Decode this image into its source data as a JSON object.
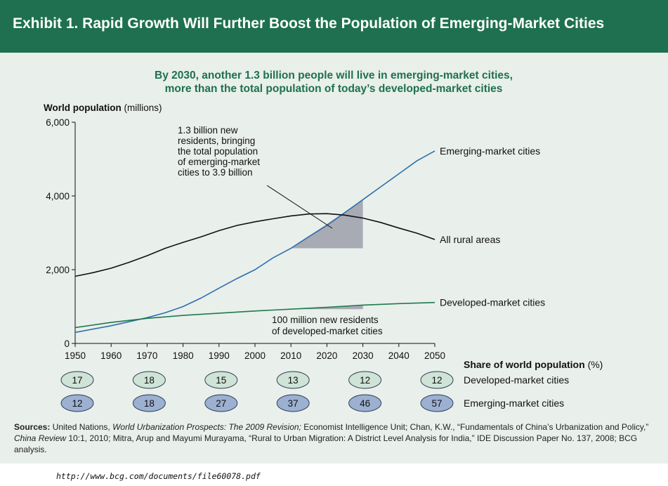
{
  "header": {
    "title": "Exhibit 1. Rapid Growth Will Further Boost the Population of Emerging-Market Cities"
  },
  "chart_data": {
    "type": "line",
    "title": "By 2030, another 1.3 billion people will live in emerging-market cities, more than the total population of today’s developed-market cities",
    "title_lines": [
      "By 2030, another 1.3 billion people will live in emerging-market cities,",
      "more than the total population of today’s developed-market cities"
    ],
    "ylabel": "World population (millions)",
    "ylabel_main": "World population",
    "ylabel_unit": "(millions)",
    "ylim": [
      0,
      6000
    ],
    "xlim": [
      1950,
      2050
    ],
    "y_ticks": [
      "0",
      "2,000",
      "4,000",
      "6,000"
    ],
    "x_ticks": [
      "1950",
      "1960",
      "1970",
      "1980",
      "1990",
      "2000",
      "2010",
      "2020",
      "2030",
      "2040",
      "2050"
    ],
    "grid": false,
    "series": [
      {
        "name": "Emerging-market cities",
        "color": "#2f6fae",
        "x": [
          1950,
          1960,
          1970,
          1975,
          1980,
          1985,
          1990,
          1995,
          2000,
          2005,
          2010,
          2015,
          2020,
          2025,
          2030,
          2035,
          2040,
          2045,
          2050
        ],
        "values": [
          300,
          480,
          700,
          830,
          1000,
          1230,
          1500,
          1760,
          2000,
          2320,
          2580,
          2900,
          3200,
          3550,
          3900,
          4250,
          4600,
          4950,
          5220
        ]
      },
      {
        "name": "All rural areas",
        "color": "#111111",
        "x": [
          1950,
          1955,
          1960,
          1965,
          1970,
          1975,
          1980,
          1985,
          1990,
          1995,
          2000,
          2005,
          2010,
          2015,
          2020,
          2025,
          2030,
          2035,
          2040,
          2045,
          2050
        ],
        "values": [
          1820,
          1920,
          2040,
          2200,
          2380,
          2580,
          2740,
          2890,
          3060,
          3200,
          3300,
          3380,
          3460,
          3510,
          3520,
          3480,
          3400,
          3280,
          3130,
          2990,
          2820
        ]
      },
      {
        "name": "Developed-market cities",
        "color": "#1f7a50",
        "x": [
          1950,
          1960,
          1970,
          1980,
          1990,
          2000,
          2010,
          2020,
          2030,
          2040,
          2050
        ],
        "values": [
          430,
          570,
          680,
          760,
          820,
          880,
          930,
          980,
          1040,
          1080,
          1110
        ]
      }
    ],
    "annotations": [
      {
        "text": "1.3 billion new residents, bringing the total population of emerging-market cities to 3.9 billion",
        "lines": [
          "1.3 billion new",
          "residents, bringing",
          "the total population",
          "of emerging-market",
          "cities to 3.9 billion"
        ],
        "shaded_region": {
          "x": [
            2010,
            2030
          ],
          "from": 2580,
          "to": 3900
        }
      },
      {
        "text": "100 million new residents of developed-market cities",
        "lines": [
          "100 million new residents",
          "of developed-market cities"
        ],
        "shaded_region": {
          "x": [
            2010,
            2030
          ],
          "from": 930,
          "to": 1040
        }
      }
    ],
    "shade_color": "#a8aab4"
  },
  "share_table": {
    "title": "Share of world population (%)",
    "title_main": "Share of world population",
    "title_unit": "(%)",
    "years": [
      1950,
      1970,
      1990,
      2010,
      2030,
      2050
    ],
    "rows": [
      {
        "label": "Developed-market cities",
        "values": [
          "17",
          "18",
          "15",
          "13",
          "12",
          "12"
        ],
        "fill": "#cfe3d6"
      },
      {
        "label": "Emerging-market cities",
        "values": [
          "12",
          "18",
          "27",
          "37",
          "46",
          "57"
        ],
        "fill": "#9cb0d2"
      }
    ]
  },
  "sources": {
    "label": "Sources:",
    "text_parts": [
      " United Nations, ",
      "World Urbanization Prospects: The 2009 Revision;",
      " Economist Intelligence Unit; Chan, K.W., “Fundamentals of China’s Urbanization and Policy,” ",
      "China Review",
      " 10:1, 2010; Mitra, Arup and Mayumi Murayama, “Rural to Urban Migration: A District Level Analysis for India,” IDE Discussion Paper No. 137, 2008; BCG analysis."
    ]
  },
  "footer": {
    "url": "http://www.bcg.com/documents/file60078.pdf"
  }
}
